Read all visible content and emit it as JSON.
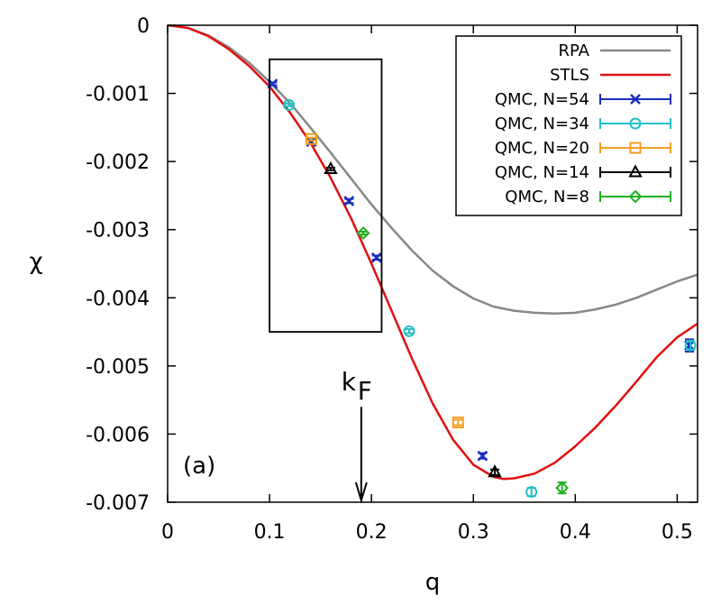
{
  "chart_data": {
    "type": "line",
    "title": "",
    "xlabel": "q",
    "ylabel": "χ",
    "xlim": [
      0,
      0.52
    ],
    "ylim": [
      -0.007,
      0
    ],
    "x_ticks": [
      0,
      0.1,
      0.2,
      0.3,
      0.4,
      0.5
    ],
    "x_tick_labels": [
      "0",
      "0.1",
      "0.2",
      "0.3",
      "0.4",
      "0.5"
    ],
    "y_ticks": [
      0,
      -0.001,
      -0.002,
      -0.003,
      -0.004,
      -0.005,
      -0.006,
      -0.007
    ],
    "y_tick_labels": [
      "0",
      "-0.001",
      "-0.002",
      "-0.003",
      "-0.004",
      "-0.005",
      "-0.006",
      "-0.007"
    ],
    "grid": false,
    "legend_position": "top-right",
    "panel_label": "(a)",
    "annotation": {
      "text": "k",
      "subscript": "F",
      "x": 0.19,
      "arrow_from_y": -0.0056,
      "arrow_to_y": -0.007
    },
    "inset_rectangle": {
      "x0": 0.1,
      "x1": 0.21,
      "y0": -0.0045,
      "y1": -0.0005
    },
    "series": [
      {
        "name": "RPA",
        "kind": "line",
        "color": "#888888",
        "x": [
          0,
          0.02,
          0.04,
          0.06,
          0.08,
          0.1,
          0.12,
          0.14,
          0.16,
          0.18,
          0.2,
          0.22,
          0.24,
          0.26,
          0.28,
          0.3,
          0.32,
          0.34,
          0.36,
          0.38,
          0.4,
          0.42,
          0.44,
          0.46,
          0.48,
          0.5,
          0.52
        ],
        "y": [
          0,
          -4e-05,
          -0.00015,
          -0.00032,
          -0.00055,
          -0.00083,
          -0.00114,
          -0.0015,
          -0.00187,
          -0.00225,
          -0.00263,
          -0.00298,
          -0.00331,
          -0.0036,
          -0.00383,
          -0.00401,
          -0.00413,
          -0.00419,
          -0.00422,
          -0.00423,
          -0.00422,
          -0.00417,
          -0.0041,
          -0.004,
          -0.00388,
          -0.00376,
          -0.00366
        ]
      },
      {
        "name": "STLS",
        "kind": "line",
        "color": "#e01010",
        "x": [
          0,
          0.02,
          0.04,
          0.06,
          0.08,
          0.1,
          0.12,
          0.14,
          0.16,
          0.18,
          0.2,
          0.22,
          0.24,
          0.26,
          0.28,
          0.3,
          0.32,
          0.33,
          0.34,
          0.36,
          0.38,
          0.4,
          0.42,
          0.44,
          0.46,
          0.48,
          0.5,
          0.52
        ],
        "y": [
          0,
          -4e-05,
          -0.00016,
          -0.00035,
          -0.0006,
          -0.0009,
          -0.00128,
          -0.00172,
          -0.00224,
          -0.00283,
          -0.0035,
          -0.0042,
          -0.0049,
          -0.00555,
          -0.00608,
          -0.00645,
          -0.00663,
          -0.00666,
          -0.00665,
          -0.00658,
          -0.00642,
          -0.00618,
          -0.0059,
          -0.00558,
          -0.00523,
          -0.00487,
          -0.00458,
          -0.00438
        ]
      },
      {
        "name": "QMC, N=54",
        "kind": "points",
        "marker": "x",
        "color": "#1a2ec0",
        "x": [
          0.103,
          0.141,
          0.178,
          0.205,
          0.309,
          0.512
        ],
        "y": [
          -0.00086,
          -0.00171,
          -0.00258,
          -0.00341,
          -0.00632,
          -0.0047
        ],
        "err": [
          2e-05,
          3e-05,
          3e-05,
          3e-05,
          4e-05,
          9e-05
        ]
      },
      {
        "name": "QMC, N=34",
        "kind": "points",
        "marker": "circle",
        "color": "#22c0c8",
        "x": [
          0.119,
          0.237,
          0.357,
          0.513
        ],
        "y": [
          -0.00117,
          -0.00449,
          -0.00685,
          -0.0047
        ],
        "err": [
          2e-05,
          3e-05,
          6e-05,
          6e-05
        ]
      },
      {
        "name": "QMC, N=20",
        "kind": "points",
        "marker": "square",
        "color": "#f0a020",
        "x": [
          0.141,
          0.285
        ],
        "y": [
          -0.00167,
          -0.00583
        ],
        "err": [
          2e-05,
          4e-05
        ]
      },
      {
        "name": "QMC, N=14",
        "kind": "points",
        "marker": "triangle",
        "color": "#000000",
        "x": [
          0.16,
          0.321
        ],
        "y": [
          -0.00211,
          -0.00656
        ],
        "err": [
          2e-05,
          4e-05
        ]
      },
      {
        "name": "QMC, N=8",
        "kind": "points",
        "marker": "diamond",
        "color": "#20b020",
        "x": [
          0.192,
          0.387
        ],
        "y": [
          -0.00305,
          -0.00679
        ],
        "err": [
          2e-05,
          8e-05
        ]
      }
    ]
  }
}
